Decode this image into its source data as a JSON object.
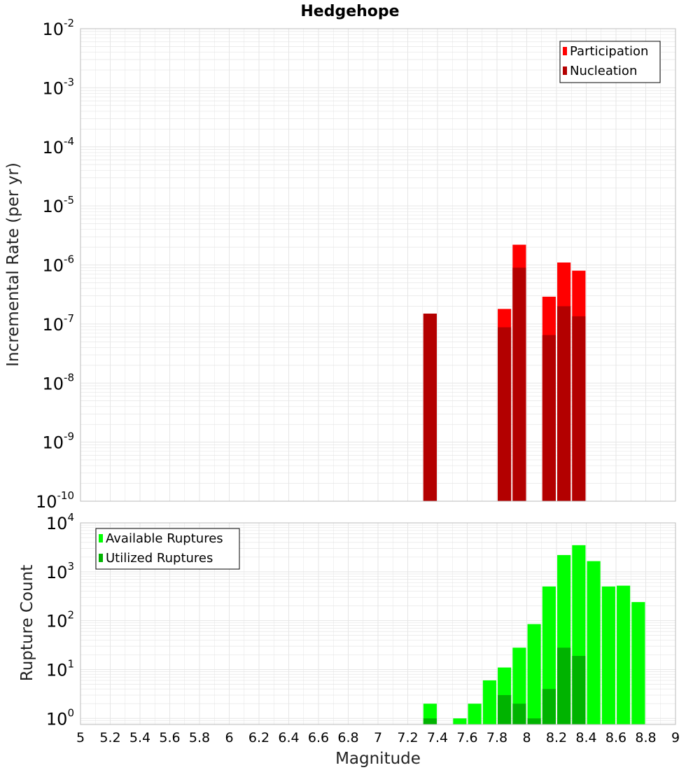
{
  "title": "Hedgehope",
  "xlabel": "Magnitude",
  "xticks": [
    "5",
    "5.2",
    "5.4",
    "5.6",
    "5.8",
    "6",
    "6.2",
    "6.4",
    "6.6",
    "6.8",
    "7",
    "7.2",
    "7.4",
    "7.6",
    "7.8",
    "8",
    "8.2",
    "8.4",
    "8.6",
    "8.8",
    "9"
  ],
  "colors": {
    "participation": "#ff0000",
    "nucleation": "#b30000",
    "available": "#00ff00",
    "utilized": "#00b300",
    "grid": "#e6e6e6",
    "frame": "#bbbbbb"
  },
  "chart_data": [
    {
      "type": "bar",
      "ylabel": "Incremental Rate (per yr)",
      "yscale": "log",
      "ylim": [
        1e-10,
        0.01
      ],
      "xlim": [
        5,
        9
      ],
      "bar_width": 0.09,
      "legend_position": "top-right",
      "y_tick_exponents": [
        -10,
        -9,
        -8,
        -7,
        -6,
        -5,
        -4,
        -3,
        -2
      ],
      "series": [
        {
          "name": "Participation",
          "x": [
            7.35,
            7.85,
            7.95,
            8.15,
            8.25,
            8.35
          ],
          "values": [
            1.5e-07,
            1.8e-07,
            2.2e-06,
            2.9e-07,
            1.1e-06,
            8e-07
          ]
        },
        {
          "name": "Nucleation",
          "x": [
            7.35,
            7.85,
            7.95,
            8.15,
            8.25,
            8.35
          ],
          "values": [
            1.5e-07,
            8.8e-08,
            9e-07,
            6.5e-08,
            2e-07,
            1.35e-07
          ]
        }
      ]
    },
    {
      "type": "bar",
      "ylabel": "Rupture Count",
      "yscale": "log",
      "ylim": [
        0.75,
        10000
      ],
      "xlim": [
        5,
        9
      ],
      "bar_width": 0.09,
      "legend_position": "top-left",
      "y_tick_exponents": [
        0,
        1,
        2,
        3,
        4
      ],
      "series": [
        {
          "name": "Available Ruptures",
          "x": [
            7.35,
            7.55,
            7.65,
            7.75,
            7.85,
            7.95,
            8.05,
            8.15,
            8.25,
            8.35,
            8.45,
            8.55,
            8.65,
            8.75
          ],
          "values": [
            2,
            1,
            2,
            6,
            11,
            28,
            85,
            500,
            2200,
            3500,
            1650,
            500,
            520,
            240
          ]
        },
        {
          "name": "Utilized Ruptures",
          "x": [
            7.35,
            7.85,
            7.95,
            8.05,
            8.15,
            8.25,
            8.35
          ],
          "values": [
            1,
            3,
            2,
            1,
            4,
            28,
            19
          ]
        }
      ]
    }
  ]
}
